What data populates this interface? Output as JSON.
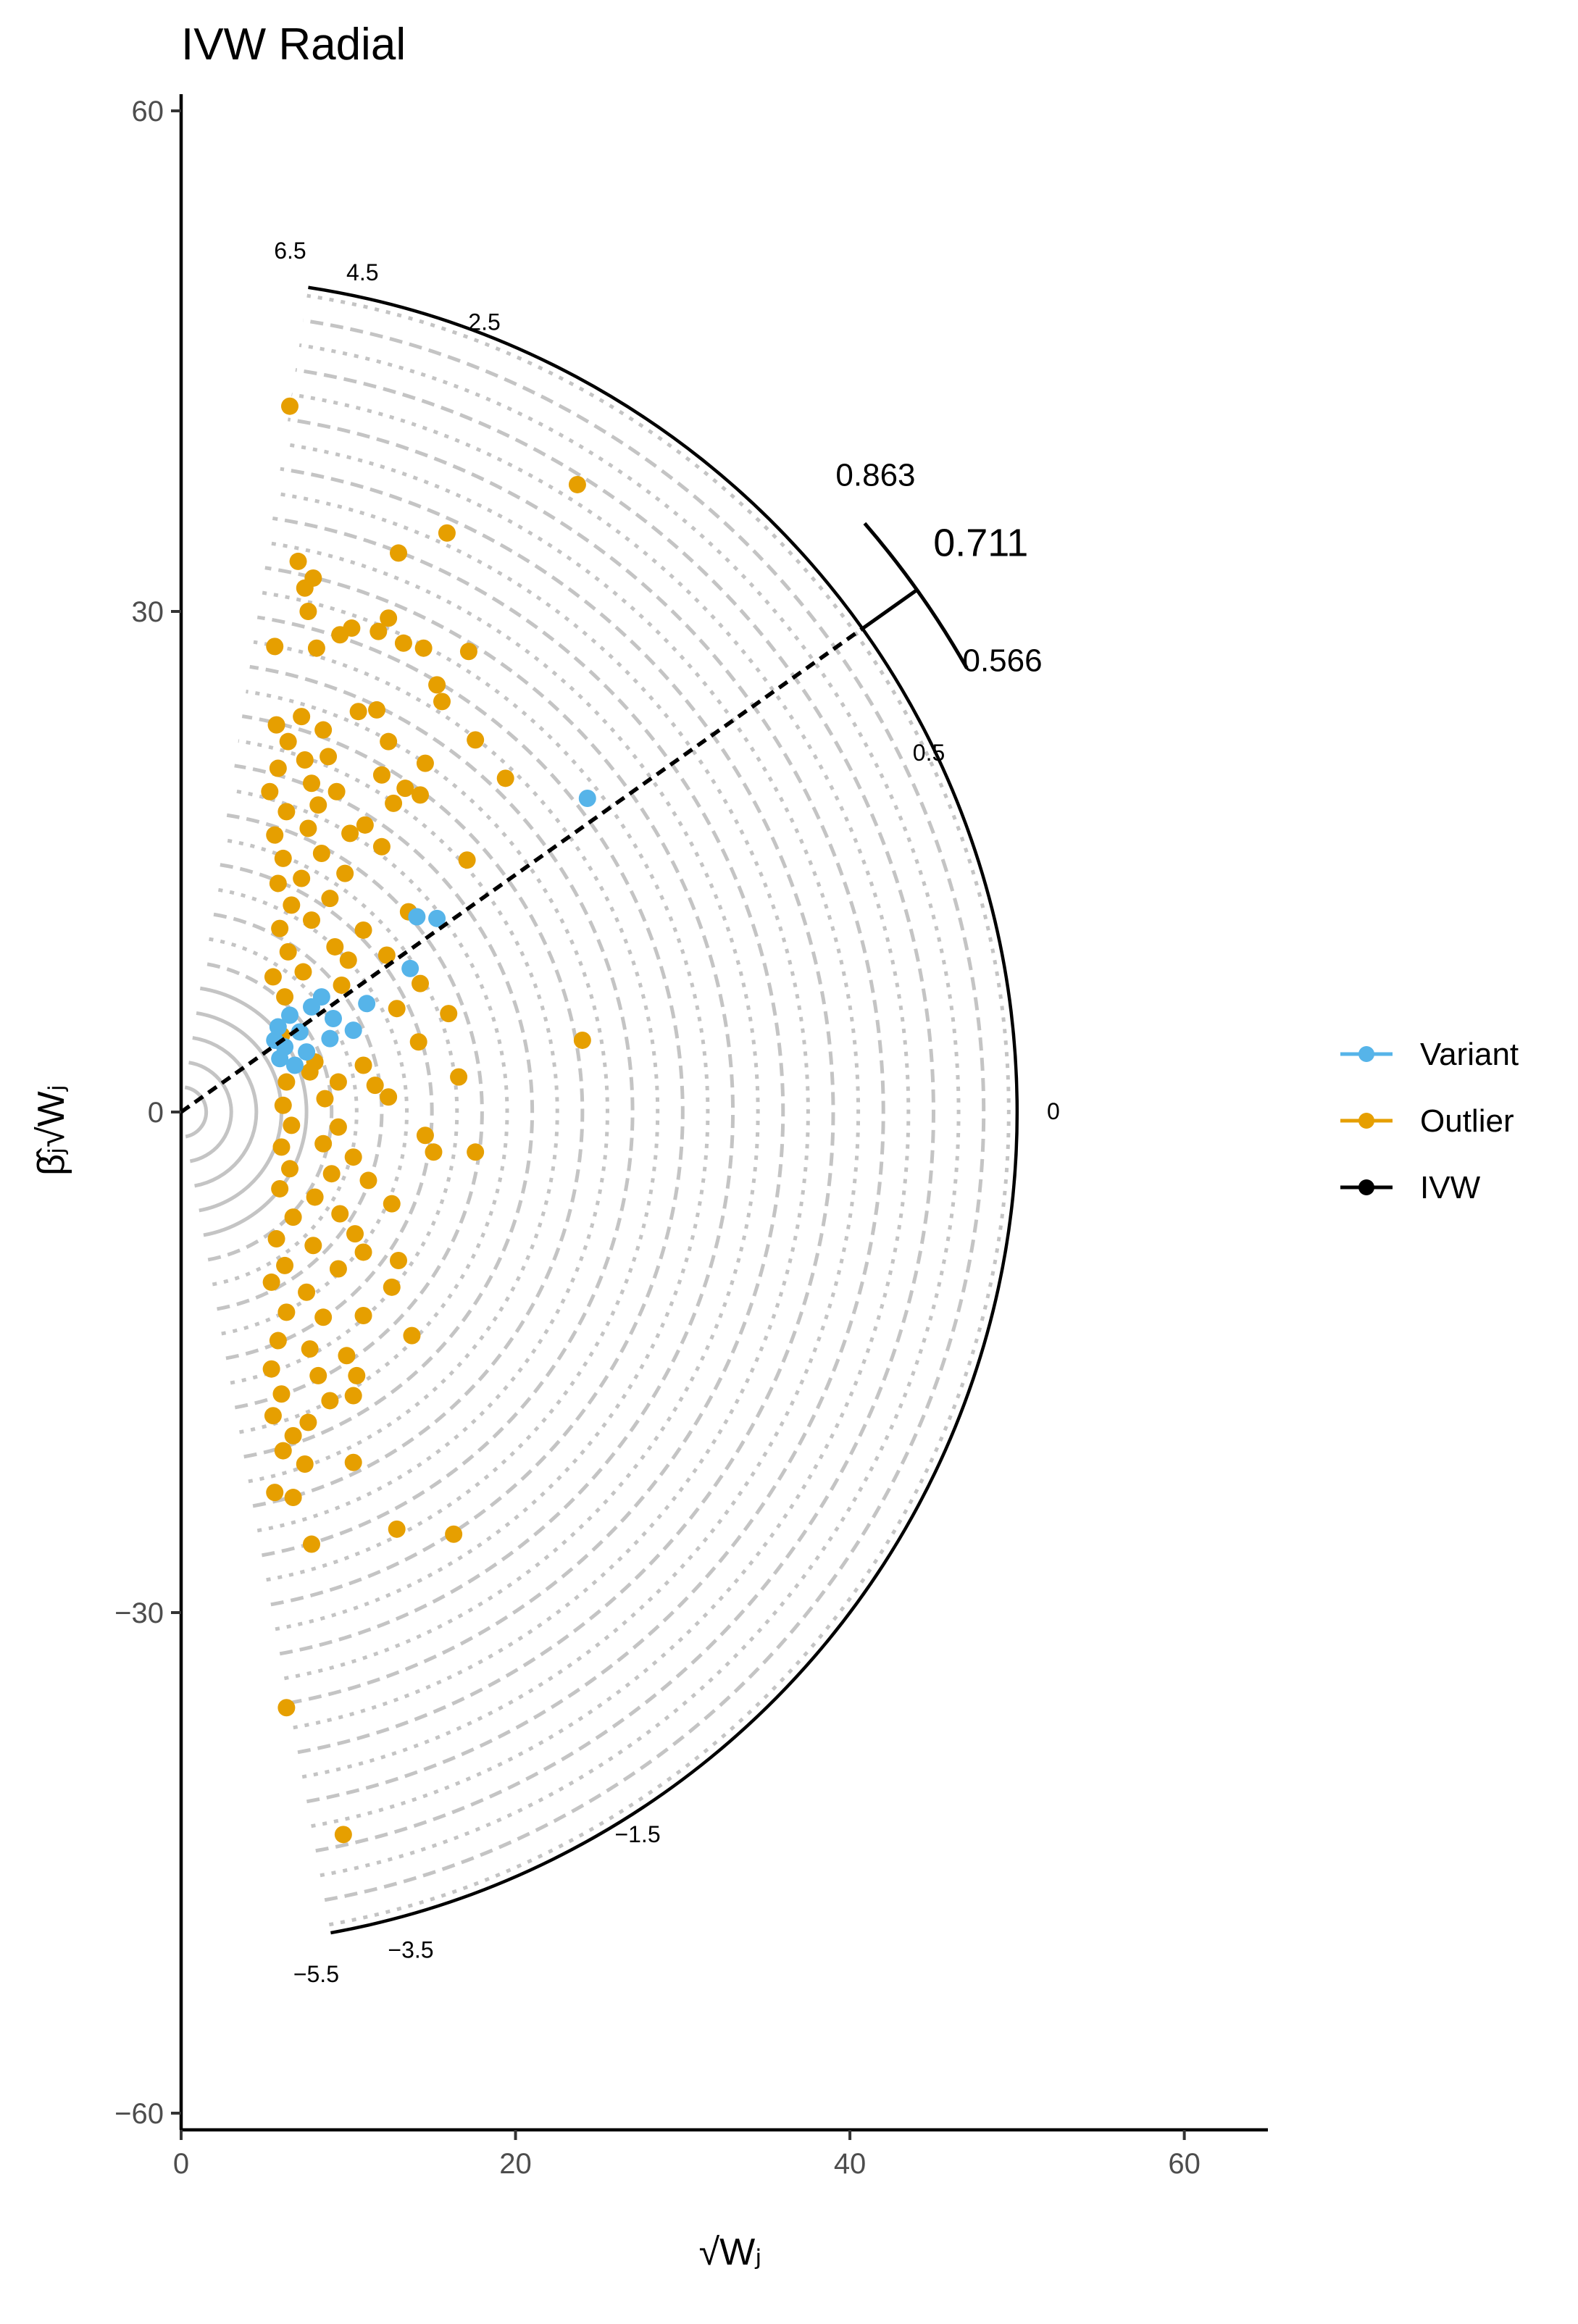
{
  "chart_data": {
    "type": "scatter",
    "title": "IVW Radial",
    "xlabel": "√Wⱼ",
    "ylabel": "β̂ⱼ√Wⱼ",
    "xlim": [
      0,
      65
    ],
    "ylim": [
      -61,
      61
    ],
    "x_ticks": [
      0,
      20,
      40,
      60
    ],
    "x_tick_labels": [
      "0",
      "20",
      "40",
      "60"
    ],
    "y_ticks": [
      -60,
      -30,
      0,
      30,
      60
    ],
    "y_tick_labels": [
      "−60",
      "−30",
      "0",
      "30",
      "60"
    ],
    "scale_radius": 50,
    "scale_annotations": [
      {
        "value": 6.5,
        "label": "6.5"
      },
      {
        "value": 4.5,
        "label": "4.5"
      },
      {
        "value": 2.5,
        "label": "2.5"
      },
      {
        "value": 0.5,
        "label": "0.5"
      },
      {
        "value": 0,
        "label": "0"
      },
      {
        "value": -1.5,
        "label": "−1.5"
      },
      {
        "value": -3.5,
        "label": "−3.5"
      },
      {
        "value": -5.5,
        "label": "−5.5"
      }
    ],
    "ivw": {
      "estimate": 0.711,
      "estimate_label": "0.711",
      "ci_lower": 0.566,
      "ci_lower_label": "0.566",
      "ci_upper": 0.863,
      "ci_upper_label": "0.863"
    },
    "legend": [
      {
        "label": "Variant",
        "color": "#56B4E9"
      },
      {
        "label": "Outlier",
        "color": "#E69F00"
      },
      {
        "label": "IVW",
        "color": "#000000"
      }
    ],
    "legend_position": "right",
    "series": [
      {
        "name": "Variant",
        "color": "#56B4E9",
        "points": [
          [
            24.3,
            18.8
          ],
          [
            14.1,
            11.7
          ],
          [
            15.3,
            11.6
          ],
          [
            13.7,
            8.6
          ],
          [
            11.1,
            6.5
          ],
          [
            8.4,
            6.9
          ],
          [
            7.8,
            6.3
          ],
          [
            6.5,
            5.8
          ],
          [
            9.1,
            5.6
          ],
          [
            5.8,
            5.1
          ],
          [
            7.1,
            4.8
          ],
          [
            5.6,
            4.3
          ],
          [
            8.9,
            4.4
          ],
          [
            6.2,
            3.9
          ],
          [
            5.9,
            3.2
          ],
          [
            6.8,
            2.8
          ],
          [
            7.5,
            3.6
          ],
          [
            10.3,
            4.9
          ]
        ]
      },
      {
        "name": "Outlier",
        "color": "#E69F00",
        "points": [
          [
            6.5,
            42.3
          ],
          [
            23.7,
            37.6
          ],
          [
            15.9,
            34.7
          ],
          [
            7.0,
            33.0
          ],
          [
            13.0,
            33.5
          ],
          [
            7.9,
            32.0
          ],
          [
            7.4,
            31.4
          ],
          [
            7.6,
            30.0
          ],
          [
            12.4,
            29.6
          ],
          [
            5.6,
            27.9
          ],
          [
            9.5,
            28.6
          ],
          [
            10.2,
            29.0
          ],
          [
            11.8,
            28.8
          ],
          [
            8.1,
            27.8
          ],
          [
            14.5,
            27.8
          ],
          [
            17.2,
            27.6
          ],
          [
            13.3,
            28.1
          ],
          [
            5.7,
            23.2
          ],
          [
            7.2,
            23.7
          ],
          [
            10.6,
            24.0
          ],
          [
            11.7,
            24.1
          ],
          [
            15.3,
            25.6
          ],
          [
            15.6,
            24.6
          ],
          [
            6.4,
            22.2
          ],
          [
            8.5,
            22.9
          ],
          [
            12.4,
            22.2
          ],
          [
            17.6,
            22.3
          ],
          [
            5.8,
            20.6
          ],
          [
            7.4,
            21.1
          ],
          [
            8.8,
            21.3
          ],
          [
            12.0,
            20.2
          ],
          [
            14.6,
            20.9
          ],
          [
            5.3,
            19.2
          ],
          [
            7.8,
            19.7
          ],
          [
            9.3,
            19.2
          ],
          [
            13.4,
            19.4
          ],
          [
            19.4,
            20.0
          ],
          [
            6.3,
            18.0
          ],
          [
            8.2,
            18.4
          ],
          [
            12.7,
            18.5
          ],
          [
            14.3,
            19.0
          ],
          [
            5.6,
            16.6
          ],
          [
            7.6,
            17.0
          ],
          [
            10.1,
            16.7
          ],
          [
            11.0,
            17.2
          ],
          [
            6.1,
            15.2
          ],
          [
            8.4,
            15.5
          ],
          [
            12.0,
            15.9
          ],
          [
            17.1,
            15.1
          ],
          [
            5.8,
            13.7
          ],
          [
            7.2,
            14.0
          ],
          [
            9.8,
            14.3
          ],
          [
            6.6,
            12.4
          ],
          [
            8.9,
            12.8
          ],
          [
            13.6,
            12.0
          ],
          [
            5.9,
            11.0
          ],
          [
            7.8,
            11.5
          ],
          [
            10.9,
            10.9
          ],
          [
            6.4,
            9.6
          ],
          [
            9.2,
            9.9
          ],
          [
            12.3,
            9.4
          ],
          [
            5.5,
            8.1
          ],
          [
            7.3,
            8.4
          ],
          [
            10.0,
            9.1
          ],
          [
            14.3,
            7.7
          ],
          [
            6.2,
            6.9
          ],
          [
            9.6,
            7.6
          ],
          [
            12.9,
            6.2
          ],
          [
            16.0,
            5.9
          ],
          [
            24.0,
            4.3
          ],
          [
            6.0,
            4.6
          ],
          [
            14.2,
            4.2
          ],
          [
            8.0,
            3.0
          ],
          [
            10.9,
            2.8
          ],
          [
            16.6,
            2.1
          ],
          [
            6.3,
            1.8
          ],
          [
            7.7,
            2.4
          ],
          [
            9.4,
            1.8
          ],
          [
            11.6,
            1.6
          ],
          [
            6.1,
            0.4
          ],
          [
            8.6,
            0.8
          ],
          [
            12.4,
            0.9
          ],
          [
            6.6,
            -0.8
          ],
          [
            9.4,
            -0.9
          ],
          [
            14.6,
            -1.4
          ],
          [
            6.0,
            -2.1
          ],
          [
            8.5,
            -1.9
          ],
          [
            10.3,
            -2.7
          ],
          [
            15.1,
            -2.4
          ],
          [
            17.6,
            -2.4
          ],
          [
            6.5,
            -3.4
          ],
          [
            9.0,
            -3.7
          ],
          [
            11.2,
            -4.1
          ],
          [
            5.9,
            -4.6
          ],
          [
            8.0,
            -5.1
          ],
          [
            12.6,
            -5.5
          ],
          [
            6.7,
            -6.3
          ],
          [
            9.5,
            -6.1
          ],
          [
            10.4,
            -7.3
          ],
          [
            5.7,
            -7.6
          ],
          [
            7.9,
            -8.0
          ],
          [
            10.9,
            -8.4
          ],
          [
            13.0,
            -8.9
          ],
          [
            6.2,
            -9.2
          ],
          [
            9.4,
            -9.4
          ],
          [
            5.4,
            -10.2
          ],
          [
            7.5,
            -10.8
          ],
          [
            12.6,
            -10.5
          ],
          [
            6.3,
            -12.0
          ],
          [
            8.5,
            -12.3
          ],
          [
            10.9,
            -12.2
          ],
          [
            13.8,
            -13.4
          ],
          [
            5.8,
            -13.7
          ],
          [
            7.7,
            -14.2
          ],
          [
            9.9,
            -14.6
          ],
          [
            5.4,
            -15.4
          ],
          [
            8.2,
            -15.8
          ],
          [
            10.5,
            -15.8
          ],
          [
            6.0,
            -16.9
          ],
          [
            8.9,
            -17.3
          ],
          [
            10.3,
            -17.0
          ],
          [
            5.5,
            -18.2
          ],
          [
            7.6,
            -18.6
          ],
          [
            6.7,
            -19.4
          ],
          [
            6.1,
            -20.3
          ],
          [
            7.4,
            -21.1
          ],
          [
            10.3,
            -21.0
          ],
          [
            5.6,
            -22.8
          ],
          [
            6.7,
            -23.1
          ],
          [
            7.8,
            -25.9
          ],
          [
            12.9,
            -25.0
          ],
          [
            16.3,
            -25.3
          ],
          [
            6.3,
            -35.7
          ],
          [
            9.7,
            -43.3
          ]
        ]
      }
    ]
  }
}
